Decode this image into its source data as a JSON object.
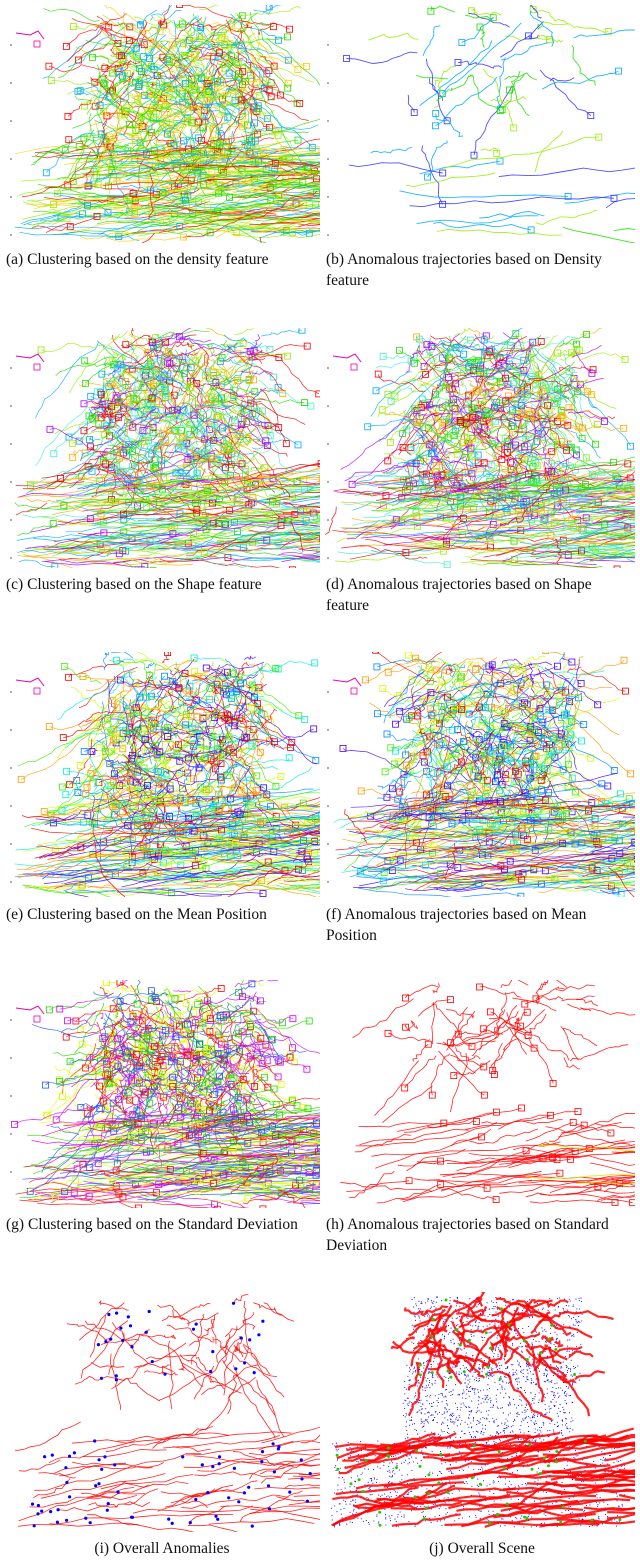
{
  "figure": {
    "panels": [
      {
        "id": "a",
        "caption": "(a) Clustering based on the density feature",
        "palette": [
          "#ff0000",
          "#22dd00",
          "#ffcc00",
          "#99ee00",
          "#00aaff"
        ],
        "kind": "cluster"
      },
      {
        "id": "b",
        "caption": "(b) Anomalous trajectories based on Density feature",
        "palette": [
          "#22dd00",
          "#00aaff",
          "#3333ff",
          "#99ee00"
        ],
        "kind": "sparse"
      },
      {
        "id": "c",
        "caption": "(c) Clustering based on the Shape feature",
        "palette": [
          "#ee0000",
          "#44eecc",
          "#aa00ff",
          "#ffaa00",
          "#00aaff",
          "#99ee00",
          "#22dd00"
        ],
        "kind": "cluster"
      },
      {
        "id": "d",
        "caption": "(d) Anomalous trajectories based on Shape feature",
        "palette": [
          "#ee0000",
          "#44eecc",
          "#aa00ff",
          "#ffaa00",
          "#00aaff",
          "#99ee00",
          "#22dd00"
        ],
        "kind": "cluster"
      },
      {
        "id": "e",
        "caption": "(e) Clustering based on the Mean Position",
        "palette": [
          "#ee0000",
          "#44ee00",
          "#ccff00",
          "#ff9900",
          "#00eedd",
          "#4400ff",
          "#0088ff"
        ],
        "kind": "cluster"
      },
      {
        "id": "f",
        "caption": "(f) Anomalous trajectories based on Mean Position",
        "palette": [
          "#ee0000",
          "#44ee00",
          "#ccff00",
          "#ff9900",
          "#00eedd",
          "#4400ff",
          "#0088ff"
        ],
        "kind": "cluster"
      },
      {
        "id": "g",
        "caption": "(g) Clustering based on the Standard Deviation",
        "palette": [
          "#ff0000",
          "#2255ff",
          "#cc00ff",
          "#ddff00",
          "#22dd00"
        ],
        "kind": "cluster"
      },
      {
        "id": "h",
        "caption": "(h) Anomalous trajectories based on Standard Deviation",
        "palette": [
          "#ff0000",
          "#ddee00"
        ],
        "kind": "anomaly"
      },
      {
        "id": "i",
        "caption": "(i) Overall Anomalies",
        "palette": [
          "#ff0000",
          "#0000ff"
        ],
        "kind": "anomaly"
      },
      {
        "id": "j",
        "caption": "(j) Overall Scene",
        "palette": [
          "#ff0000",
          "#0000ff",
          "#22cc00"
        ],
        "kind": "scene"
      }
    ]
  }
}
